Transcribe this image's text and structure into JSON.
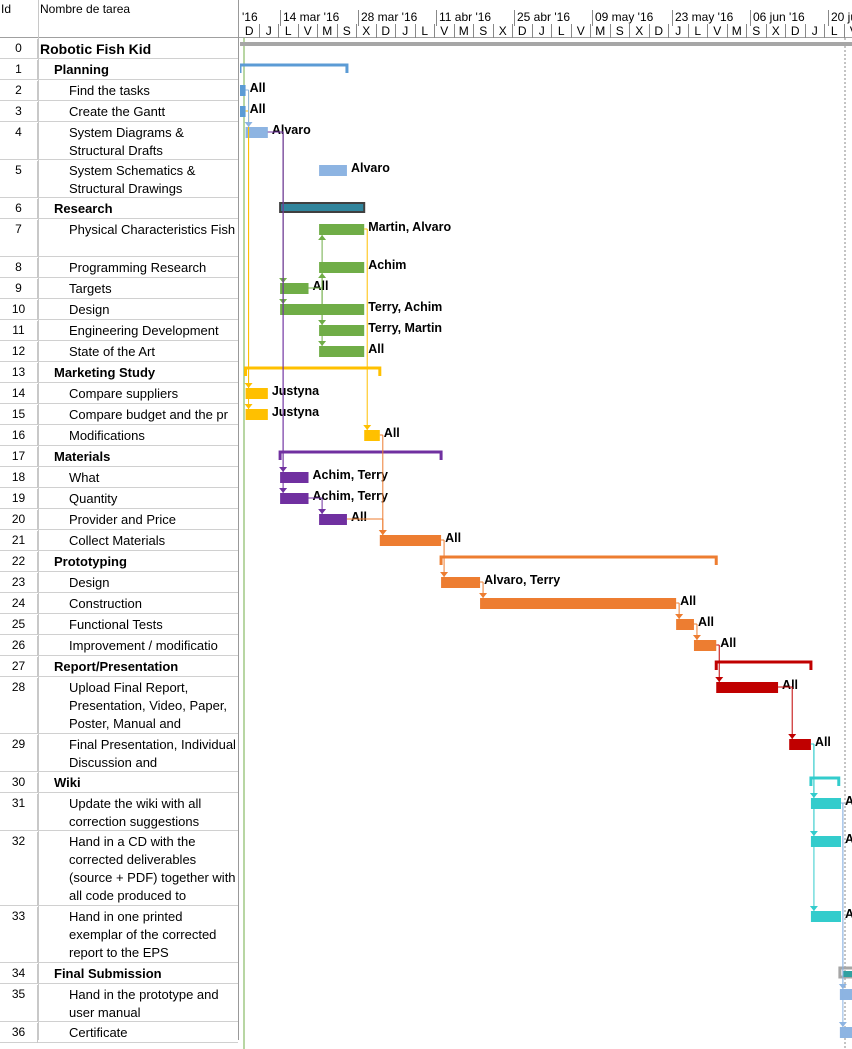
{
  "header": {
    "id_label": "Id",
    "name_label": "Nombre de tarea",
    "tier1": [
      "'16",
      "14 mar '16",
      "28 mar '16",
      "11 abr '16",
      "25 abr '16",
      "09 may '16",
      "23 may '16",
      "06 jun '16",
      "20 ju"
    ],
    "tier2": [
      "D",
      "J",
      "L",
      "V",
      "M",
      "S",
      "X",
      "D",
      "J",
      "L",
      "V",
      "M",
      "S",
      "X",
      "D",
      "J",
      "L",
      "V",
      "M",
      "S",
      "X",
      "D",
      "J",
      "L",
      "V",
      "M",
      "S",
      "X",
      "D",
      "J",
      "L",
      "V"
    ]
  },
  "chart_data": {
    "type": "gantt",
    "day_origin": "07 mar '16",
    "day_unit": "days",
    "tasks": [
      {
        "id": "0",
        "name": "Robotic Fish Kid",
        "level": 0,
        "lines": 1,
        "kind": "project",
        "start": 0,
        "finish": 110,
        "color": "#a6a6a6",
        "resource": ""
      },
      {
        "id": "1",
        "name": "Planning",
        "level": 1,
        "lines": 1,
        "kind": "summary",
        "start": -1,
        "finish": 19.2,
        "color": "#5b9bd5",
        "resource": ""
      },
      {
        "id": "2",
        "name": "Find the tasks",
        "level": 2,
        "lines": 1,
        "kind": "task",
        "start": -1,
        "finish": 1,
        "color": "#5b9bd5",
        "resource": "All"
      },
      {
        "id": "3",
        "name": "Create the Gantt",
        "level": 2,
        "lines": 1,
        "kind": "task",
        "start": -1,
        "finish": 1,
        "color": "#5b9bd5",
        "resource": "All"
      },
      {
        "id": "4",
        "name": "System Diagrams & Structural Drafts",
        "level": 2,
        "lines": 2,
        "kind": "task",
        "start": 1,
        "finish": 5,
        "color": "#8db4e2",
        "resource": "Alvaro"
      },
      {
        "id": "5",
        "name": "System Schematics & Structural Drawings",
        "level": 2,
        "lines": 2,
        "kind": "task",
        "start": 14.2,
        "finish": 19.2,
        "color": "#8db4e2",
        "resource": "Alvaro"
      },
      {
        "id": "6",
        "name": "Research",
        "level": 1,
        "lines": 1,
        "kind": "summary",
        "start": 7.2,
        "finish": 22.3,
        "color": "#31859c",
        "resource": ""
      },
      {
        "id": "7",
        "name": "Physical Characteristics Fish",
        "level": 2,
        "lines": 2,
        "kind": "task",
        "start": 14.2,
        "finish": 22.3,
        "color": "#70ad47",
        "resource": "Martin, Alvaro"
      },
      {
        "id": "8",
        "name": "Programming Research",
        "level": 2,
        "lines": 1,
        "kind": "task",
        "start": 14.2,
        "finish": 22.3,
        "color": "#70ad47",
        "resource": "Achim"
      },
      {
        "id": "9",
        "name": "Targets",
        "level": 2,
        "lines": 1,
        "kind": "task",
        "start": 7.2,
        "finish": 12.3,
        "color": "#70ad47",
        "resource": "All"
      },
      {
        "id": "10",
        "name": "Design",
        "level": 2,
        "lines": 1,
        "kind": "task",
        "start": 7.2,
        "finish": 22.3,
        "color": "#70ad47",
        "resource": "Terry, Achim"
      },
      {
        "id": "11",
        "name": "Engineering Development",
        "level": 2,
        "lines": 1,
        "kind": "task",
        "start": 14.2,
        "finish": 22.3,
        "color": "#70ad47",
        "resource": "Terry, Martin"
      },
      {
        "id": "12",
        "name": "State of the Art",
        "level": 2,
        "lines": 1,
        "kind": "task",
        "start": 14.2,
        "finish": 22.3,
        "color": "#70ad47",
        "resource": "All"
      },
      {
        "id": "13",
        "name": "Marketing Study",
        "level": 1,
        "lines": 1,
        "kind": "summary",
        "start": 1,
        "finish": 25.1,
        "color": "#ffc000",
        "resource": ""
      },
      {
        "id": "14",
        "name": "Compare suppliers",
        "level": 2,
        "lines": 1,
        "kind": "task",
        "start": 1,
        "finish": 5,
        "color": "#ffc000",
        "resource": "Justyna"
      },
      {
        "id": "15",
        "name": "Compare budget and the pr",
        "level": 2,
        "lines": 1,
        "kind": "task",
        "start": 1,
        "finish": 5,
        "color": "#ffc000",
        "resource": "Justyna"
      },
      {
        "id": "16",
        "name": "Modifications",
        "level": 2,
        "lines": 1,
        "kind": "task",
        "start": 22.3,
        "finish": 25.1,
        "color": "#ffc000",
        "resource": "All"
      },
      {
        "id": "17",
        "name": "Materials",
        "level": 1,
        "lines": 1,
        "kind": "summary",
        "start": 7.2,
        "finish": 36.1,
        "color": "#7030a0",
        "resource": ""
      },
      {
        "id": "18",
        "name": "What",
        "level": 2,
        "lines": 1,
        "kind": "task",
        "start": 7.2,
        "finish": 12.3,
        "color": "#7030a0",
        "resource": "Achim, Terry"
      },
      {
        "id": "19",
        "name": "Quantity",
        "level": 2,
        "lines": 1,
        "kind": "task",
        "start": 7.2,
        "finish": 12.3,
        "color": "#7030a0",
        "resource": "Achim, Terry"
      },
      {
        "id": "20",
        "name": "Provider and Price",
        "level": 2,
        "lines": 1,
        "kind": "task",
        "start": 14.2,
        "finish": 19.2,
        "color": "#7030a0",
        "resource": "All"
      },
      {
        "id": "21",
        "name": "Collect Materials",
        "level": 2,
        "lines": 1,
        "kind": "task",
        "start": 25.1,
        "finish": 36.1,
        "color": "#ed7d31",
        "resource": "All"
      },
      {
        "id": "22",
        "name": "Prototyping",
        "level": 1,
        "lines": 1,
        "kind": "summary",
        "start": 36.1,
        "finish": 85.5,
        "color": "#ed7d31",
        "resource": ""
      },
      {
        "id": "23",
        "name": "Design",
        "level": 2,
        "lines": 1,
        "kind": "task",
        "start": 36.1,
        "finish": 43.1,
        "color": "#ed7d31",
        "resource": "Alvaro, Terry"
      },
      {
        "id": "24",
        "name": "Construction",
        "level": 2,
        "lines": 1,
        "kind": "task",
        "start": 43.1,
        "finish": 78.3,
        "color": "#ed7d31",
        "resource": "All"
      },
      {
        "id": "25",
        "name": "Functional Tests",
        "level": 2,
        "lines": 1,
        "kind": "task",
        "start": 78.3,
        "finish": 81.5,
        "color": "#ed7d31",
        "resource": "All"
      },
      {
        "id": "26",
        "name": "Improvement / modificatio",
        "level": 2,
        "lines": 1,
        "kind": "task",
        "start": 81.5,
        "finish": 85.5,
        "color": "#ed7d31",
        "resource": "All"
      },
      {
        "id": "27",
        "name": "Report/Presentation",
        "level": 1,
        "lines": 1,
        "kind": "summary",
        "start": 85.5,
        "finish": 102.5,
        "color": "#c00000",
        "resource": ""
      },
      {
        "id": "28",
        "name": "Upload Final Report, Presentation, Video, Paper, Poster, Manual and",
        "level": 2,
        "lines": 3,
        "kind": "task",
        "start": 85.5,
        "finish": 96.6,
        "color": "#c00000",
        "resource": "All"
      },
      {
        "id": "29",
        "name": "Final Presentation, Individual Discussion and",
        "level": 2,
        "lines": 2,
        "kind": "task",
        "start": 98.6,
        "finish": 102.5,
        "color": "#c00000",
        "resource": "All"
      },
      {
        "id": "30",
        "name": "Wiki",
        "level": 1,
        "lines": 1,
        "kind": "summary",
        "start": 102.5,
        "finish": 107.5,
        "color": "#33cccc",
        "resource": ""
      },
      {
        "id": "31",
        "name": "Update the wiki with all correction suggestions",
        "level": 2,
        "lines": 2,
        "kind": "task",
        "start": 102.5,
        "finish": 107.9,
        "color": "#33cccc",
        "resource": "A"
      },
      {
        "id": "32",
        "name": "Hand in a CD with the corrected deliverables (source + PDF) together with all code produced to",
        "level": 2,
        "lines": 4,
        "kind": "task",
        "start": 102.5,
        "finish": 107.9,
        "color": "#33cccc",
        "resource": "A"
      },
      {
        "id": "33",
        "name": "Hand in one printed exemplar of the corrected report to the EPS",
        "level": 2,
        "lines": 3,
        "kind": "task",
        "start": 102.5,
        "finish": 107.9,
        "color": "#33cccc",
        "resource": "A"
      },
      {
        "id": "34",
        "name": "Final Submission",
        "level": 1,
        "lines": 1,
        "kind": "summary",
        "start": 107.7,
        "finish": 112,
        "color": "#a6a6a6",
        "resource": ""
      },
      {
        "id": "35",
        "name": "Hand in the prototype and user manual",
        "level": 2,
        "lines": 2,
        "kind": "task",
        "start": 107.7,
        "finish": 112,
        "color": "#8db4e2",
        "resource": ""
      },
      {
        "id": "36",
        "name": "Certificate",
        "level": 2,
        "lines": 1,
        "kind": "task",
        "start": 107.7,
        "finish": 112,
        "color": "#8db4e2",
        "resource": ""
      }
    ],
    "links": [
      [
        2,
        14
      ],
      [
        3,
        15
      ],
      [
        2,
        4
      ],
      [
        4,
        9
      ],
      [
        4,
        10
      ],
      [
        4,
        18
      ],
      [
        4,
        19
      ],
      [
        9,
        7
      ],
      [
        9,
        8
      ],
      [
        9,
        11
      ],
      [
        9,
        12
      ],
      [
        7,
        16
      ],
      [
        19,
        20
      ],
      [
        20,
        21
      ],
      [
        16,
        21
      ],
      [
        21,
        23
      ],
      [
        23,
        24
      ],
      [
        24,
        25
      ],
      [
        25,
        26
      ],
      [
        26,
        28
      ],
      [
        28,
        29
      ],
      [
        29,
        31
      ],
      [
        29,
        32
      ],
      [
        29,
        33
      ],
      [
        31,
        35
      ],
      [
        31,
        36
      ]
    ]
  }
}
